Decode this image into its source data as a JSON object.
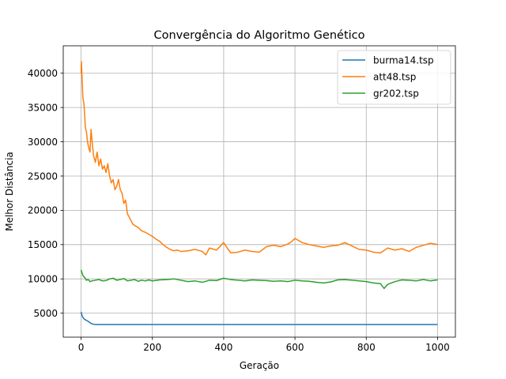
{
  "chart_data": {
    "type": "line",
    "title": "Convergência do Algoritmo Genético",
    "xlabel": "Geração",
    "ylabel": "Melhor Distância",
    "xlim": [
      -50,
      1050
    ],
    "ylim": [
      1500,
      44000
    ],
    "xticks": [
      0,
      200,
      400,
      600,
      800,
      1000
    ],
    "yticks": [
      5000,
      10000,
      15000,
      20000,
      25000,
      30000,
      35000,
      40000
    ],
    "grid": true,
    "legend_position": "top-right",
    "series": [
      {
        "name": "burma14.tsp",
        "color": "#1f77b4",
        "points": [
          [
            0,
            5200
          ],
          [
            3,
            4600
          ],
          [
            6,
            4300
          ],
          [
            10,
            4100
          ],
          [
            15,
            3950
          ],
          [
            20,
            3800
          ],
          [
            25,
            3600
          ],
          [
            30,
            3450
          ],
          [
            35,
            3380
          ],
          [
            40,
            3350
          ],
          [
            60,
            3340
          ],
          [
            100,
            3340
          ],
          [
            200,
            3340
          ],
          [
            300,
            3340
          ],
          [
            400,
            3340
          ],
          [
            500,
            3340
          ],
          [
            600,
            3340
          ],
          [
            700,
            3340
          ],
          [
            800,
            3340
          ],
          [
            900,
            3340
          ],
          [
            1000,
            3340
          ]
        ]
      },
      {
        "name": "att48.tsp",
        "color": "#ff7f0e",
        "points": [
          [
            0,
            40000
          ],
          [
            1,
            41700
          ],
          [
            3,
            39000
          ],
          [
            5,
            36500
          ],
          [
            8,
            35500
          ],
          [
            10,
            34000
          ],
          [
            12,
            32000
          ],
          [
            15,
            31500
          ],
          [
            18,
            30000
          ],
          [
            22,
            29000
          ],
          [
            25,
            28500
          ],
          [
            28,
            31800
          ],
          [
            32,
            29500
          ],
          [
            35,
            28000
          ],
          [
            40,
            27000
          ],
          [
            45,
            28500
          ],
          [
            50,
            26500
          ],
          [
            55,
            27500
          ],
          [
            60,
            26000
          ],
          [
            65,
            26500
          ],
          [
            70,
            25500
          ],
          [
            75,
            26800
          ],
          [
            80,
            25000
          ],
          [
            85,
            24000
          ],
          [
            90,
            24500
          ],
          [
            95,
            23000
          ],
          [
            100,
            23500
          ],
          [
            105,
            24500
          ],
          [
            110,
            23000
          ],
          [
            115,
            22500
          ],
          [
            120,
            21000
          ],
          [
            125,
            21500
          ],
          [
            130,
            19500
          ],
          [
            135,
            19000
          ],
          [
            140,
            18500
          ],
          [
            145,
            18000
          ],
          [
            150,
            17800
          ],
          [
            160,
            17500
          ],
          [
            170,
            17000
          ],
          [
            180,
            16800
          ],
          [
            190,
            16500
          ],
          [
            200,
            16200
          ],
          [
            210,
            15800
          ],
          [
            220,
            15500
          ],
          [
            230,
            15000
          ],
          [
            240,
            14600
          ],
          [
            250,
            14300
          ],
          [
            260,
            14100
          ],
          [
            270,
            14200
          ],
          [
            280,
            14000
          ],
          [
            300,
            14100
          ],
          [
            320,
            14300
          ],
          [
            340,
            14000
          ],
          [
            350,
            13500
          ],
          [
            360,
            14500
          ],
          [
            380,
            14200
          ],
          [
            400,
            15300
          ],
          [
            410,
            14500
          ],
          [
            420,
            13800
          ],
          [
            440,
            13900
          ],
          [
            460,
            14200
          ],
          [
            480,
            14000
          ],
          [
            500,
            13900
          ],
          [
            510,
            14300
          ],
          [
            520,
            14700
          ],
          [
            540,
            14900
          ],
          [
            560,
            14700
          ],
          [
            580,
            15100
          ],
          [
            590,
            15400
          ],
          [
            600,
            15900
          ],
          [
            620,
            15300
          ],
          [
            640,
            15000
          ],
          [
            660,
            14800
          ],
          [
            680,
            14600
          ],
          [
            700,
            14800
          ],
          [
            720,
            14900
          ],
          [
            740,
            15300
          ],
          [
            760,
            14800
          ],
          [
            780,
            14300
          ],
          [
            800,
            14200
          ],
          [
            820,
            13900
          ],
          [
            840,
            13800
          ],
          [
            860,
            14500
          ],
          [
            880,
            14200
          ],
          [
            900,
            14400
          ],
          [
            920,
            14000
          ],
          [
            940,
            14600
          ],
          [
            960,
            14900
          ],
          [
            980,
            15200
          ],
          [
            1000,
            15000
          ]
        ]
      },
      {
        "name": "gr202.tsp",
        "color": "#2ca02c",
        "points": [
          [
            0,
            11300
          ],
          [
            5,
            10500
          ],
          [
            10,
            10200
          ],
          [
            15,
            9800
          ],
          [
            20,
            9900
          ],
          [
            25,
            9600
          ],
          [
            30,
            9700
          ],
          [
            40,
            9800
          ],
          [
            50,
            9900
          ],
          [
            60,
            9700
          ],
          [
            70,
            9750
          ],
          [
            80,
            10000
          ],
          [
            90,
            10100
          ],
          [
            100,
            9800
          ],
          [
            110,
            9900
          ],
          [
            120,
            10050
          ],
          [
            130,
            9700
          ],
          [
            140,
            9800
          ],
          [
            150,
            9900
          ],
          [
            160,
            9650
          ],
          [
            170,
            9800
          ],
          [
            180,
            9700
          ],
          [
            190,
            9850
          ],
          [
            200,
            9700
          ],
          [
            220,
            9850
          ],
          [
            240,
            9900
          ],
          [
            260,
            10000
          ],
          [
            280,
            9800
          ],
          [
            300,
            9600
          ],
          [
            320,
            9700
          ],
          [
            340,
            9500
          ],
          [
            360,
            9800
          ],
          [
            380,
            9750
          ],
          [
            400,
            10100
          ],
          [
            420,
            9900
          ],
          [
            440,
            9800
          ],
          [
            460,
            9700
          ],
          [
            480,
            9850
          ],
          [
            500,
            9800
          ],
          [
            520,
            9750
          ],
          [
            540,
            9650
          ],
          [
            560,
            9700
          ],
          [
            580,
            9600
          ],
          [
            600,
            9800
          ],
          [
            620,
            9700
          ],
          [
            640,
            9650
          ],
          [
            660,
            9500
          ],
          [
            680,
            9400
          ],
          [
            700,
            9550
          ],
          [
            720,
            9850
          ],
          [
            740,
            9900
          ],
          [
            760,
            9800
          ],
          [
            780,
            9700
          ],
          [
            800,
            9600
          ],
          [
            810,
            9500
          ],
          [
            820,
            9400
          ],
          [
            840,
            9300
          ],
          [
            850,
            8600
          ],
          [
            860,
            9200
          ],
          [
            880,
            9600
          ],
          [
            900,
            9850
          ],
          [
            920,
            9800
          ],
          [
            940,
            9700
          ],
          [
            960,
            9900
          ],
          [
            980,
            9700
          ],
          [
            1000,
            9850
          ]
        ]
      }
    ]
  }
}
